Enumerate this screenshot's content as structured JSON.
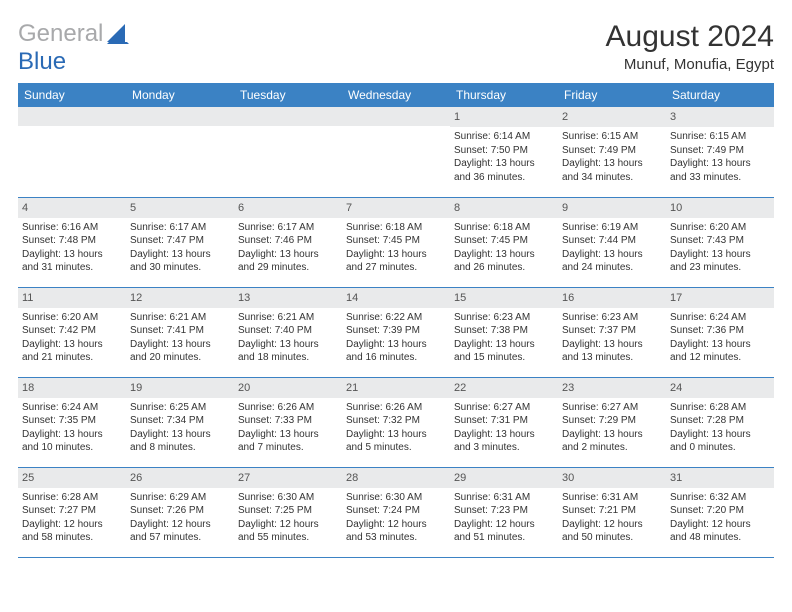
{
  "logo": {
    "gray": "General",
    "blue": "Blue"
  },
  "title": "August 2024",
  "location": "Munuf, Monufia, Egypt",
  "colors": {
    "header_bg": "#3b82c4",
    "header_text": "#ffffff",
    "daynum_bg": "#e9eaeb",
    "text": "#333333",
    "logo_gray": "#a8a9ab",
    "logo_blue": "#2a6ab5"
  },
  "dayHeaders": [
    "Sunday",
    "Monday",
    "Tuesday",
    "Wednesday",
    "Thursday",
    "Friday",
    "Saturday"
  ],
  "weeks": [
    [
      null,
      null,
      null,
      null,
      {
        "n": "1",
        "sr": "6:14 AM",
        "ss": "7:50 PM",
        "dl": "13 hours and 36 minutes."
      },
      {
        "n": "2",
        "sr": "6:15 AM",
        "ss": "7:49 PM",
        "dl": "13 hours and 34 minutes."
      },
      {
        "n": "3",
        "sr": "6:15 AM",
        "ss": "7:49 PM",
        "dl": "13 hours and 33 minutes."
      }
    ],
    [
      {
        "n": "4",
        "sr": "6:16 AM",
        "ss": "7:48 PM",
        "dl": "13 hours and 31 minutes."
      },
      {
        "n": "5",
        "sr": "6:17 AM",
        "ss": "7:47 PM",
        "dl": "13 hours and 30 minutes."
      },
      {
        "n": "6",
        "sr": "6:17 AM",
        "ss": "7:46 PM",
        "dl": "13 hours and 29 minutes."
      },
      {
        "n": "7",
        "sr": "6:18 AM",
        "ss": "7:45 PM",
        "dl": "13 hours and 27 minutes."
      },
      {
        "n": "8",
        "sr": "6:18 AM",
        "ss": "7:45 PM",
        "dl": "13 hours and 26 minutes."
      },
      {
        "n": "9",
        "sr": "6:19 AM",
        "ss": "7:44 PM",
        "dl": "13 hours and 24 minutes."
      },
      {
        "n": "10",
        "sr": "6:20 AM",
        "ss": "7:43 PM",
        "dl": "13 hours and 23 minutes."
      }
    ],
    [
      {
        "n": "11",
        "sr": "6:20 AM",
        "ss": "7:42 PM",
        "dl": "13 hours and 21 minutes."
      },
      {
        "n": "12",
        "sr": "6:21 AM",
        "ss": "7:41 PM",
        "dl": "13 hours and 20 minutes."
      },
      {
        "n": "13",
        "sr": "6:21 AM",
        "ss": "7:40 PM",
        "dl": "13 hours and 18 minutes."
      },
      {
        "n": "14",
        "sr": "6:22 AM",
        "ss": "7:39 PM",
        "dl": "13 hours and 16 minutes."
      },
      {
        "n": "15",
        "sr": "6:23 AM",
        "ss": "7:38 PM",
        "dl": "13 hours and 15 minutes."
      },
      {
        "n": "16",
        "sr": "6:23 AM",
        "ss": "7:37 PM",
        "dl": "13 hours and 13 minutes."
      },
      {
        "n": "17",
        "sr": "6:24 AM",
        "ss": "7:36 PM",
        "dl": "13 hours and 12 minutes."
      }
    ],
    [
      {
        "n": "18",
        "sr": "6:24 AM",
        "ss": "7:35 PM",
        "dl": "13 hours and 10 minutes."
      },
      {
        "n": "19",
        "sr": "6:25 AM",
        "ss": "7:34 PM",
        "dl": "13 hours and 8 minutes."
      },
      {
        "n": "20",
        "sr": "6:26 AM",
        "ss": "7:33 PM",
        "dl": "13 hours and 7 minutes."
      },
      {
        "n": "21",
        "sr": "6:26 AM",
        "ss": "7:32 PM",
        "dl": "13 hours and 5 minutes."
      },
      {
        "n": "22",
        "sr": "6:27 AM",
        "ss": "7:31 PM",
        "dl": "13 hours and 3 minutes."
      },
      {
        "n": "23",
        "sr": "6:27 AM",
        "ss": "7:29 PM",
        "dl": "13 hours and 2 minutes."
      },
      {
        "n": "24",
        "sr": "6:28 AM",
        "ss": "7:28 PM",
        "dl": "13 hours and 0 minutes."
      }
    ],
    [
      {
        "n": "25",
        "sr": "6:28 AM",
        "ss": "7:27 PM",
        "dl": "12 hours and 58 minutes."
      },
      {
        "n": "26",
        "sr": "6:29 AM",
        "ss": "7:26 PM",
        "dl": "12 hours and 57 minutes."
      },
      {
        "n": "27",
        "sr": "6:30 AM",
        "ss": "7:25 PM",
        "dl": "12 hours and 55 minutes."
      },
      {
        "n": "28",
        "sr": "6:30 AM",
        "ss": "7:24 PM",
        "dl": "12 hours and 53 minutes."
      },
      {
        "n": "29",
        "sr": "6:31 AM",
        "ss": "7:23 PM",
        "dl": "12 hours and 51 minutes."
      },
      {
        "n": "30",
        "sr": "6:31 AM",
        "ss": "7:21 PM",
        "dl": "12 hours and 50 minutes."
      },
      {
        "n": "31",
        "sr": "6:32 AM",
        "ss": "7:20 PM",
        "dl": "12 hours and 48 minutes."
      }
    ]
  ],
  "labels": {
    "sunrise": "Sunrise:",
    "sunset": "Sunset:",
    "daylight": "Daylight:"
  }
}
